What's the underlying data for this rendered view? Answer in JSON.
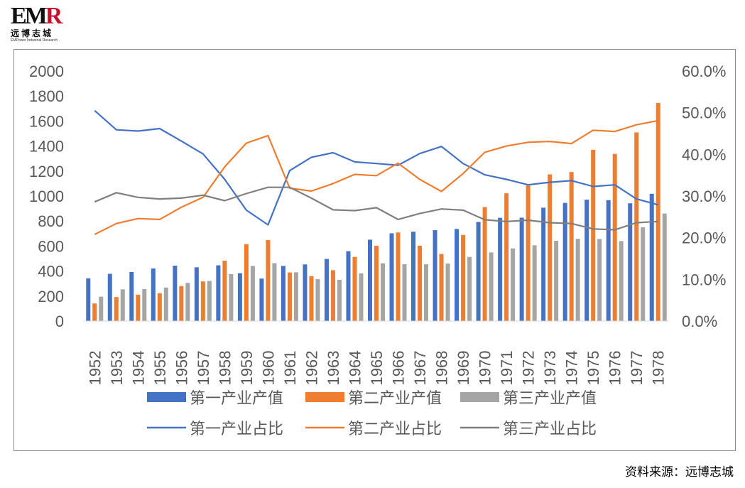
{
  "logo": {
    "mark_left": "EM",
    "mark_right": "R",
    "name_cn": "远博志城",
    "name_en": "EMPower Industrial Research"
  },
  "source": "资料来源：远博志城",
  "colors": {
    "primary": "#4472C4",
    "secondary": "#ED7D31",
    "tertiary": "#A5A5A5",
    "tertiary_line": "#7F7F7F"
  },
  "chart_data": {
    "type": "bar",
    "categories": [
      "1952",
      "1953",
      "1954",
      "1955",
      "1956",
      "1957",
      "1958",
      "1959",
      "1960",
      "1961",
      "1962",
      "1963",
      "1964",
      "1965",
      "1966",
      "1967",
      "1968",
      "1969",
      "1970",
      "1971",
      "1972",
      "1973",
      "1974",
      "1975",
      "1976",
      "1977",
      "1978"
    ],
    "y_left": {
      "ylim": [
        0,
        2000
      ],
      "ticks": [
        0,
        200,
        400,
        600,
        800,
        1000,
        1200,
        1400,
        1600,
        1800,
        2000
      ]
    },
    "y_right": {
      "ylim": [
        0,
        60
      ],
      "ticks": [
        "0.0%",
        "10.0%",
        "20.0%",
        "30.0%",
        "40.0%",
        "50.0%",
        "60.0%"
      ]
    },
    "grid": false,
    "legend_position": "bottom",
    "bar_series": [
      {
        "name": "第一产业产值",
        "color": "#4472C4",
        "values": [
          342,
          378,
          392,
          421,
          443,
          430,
          446,
          383,
          340,
          441,
          453,
          497,
          559,
          651,
          702,
          715,
          727,
          737,
          793,
          826,
          827,
          907,
          945,
          971,
          967,
          942,
          1018
        ]
      },
      {
        "name": "第二产业产值",
        "color": "#ED7D31",
        "values": [
          141,
          192,
          211,
          222,
          280,
          317,
          483,
          615,
          648,
          389,
          359,
          407,
          513,
          602,
          709,
          603,
          537,
          689,
          912,
          1022,
          1084,
          1173,
          1192,
          1370,
          1337,
          1509,
          1745
        ]
      },
      {
        "name": "第三产业产值",
        "color": "#A5A5A5",
        "values": [
          195,
          254,
          256,
          268,
          305,
          321,
          376,
          441,
          463,
          390,
          336,
          330,
          382,
          462,
          455,
          455,
          460,
          513,
          549,
          581,
          606,
          642,
          658,
          657,
          640,
          750,
          860
        ]
      }
    ],
    "line_series": [
      {
        "name": "第一产业占比",
        "color": "#4472C4",
        "values": [
          50.5,
          45.9,
          45.6,
          46.2,
          43.2,
          40.1,
          34.0,
          26.6,
          23.1,
          36.1,
          39.3,
          40.4,
          38.2,
          37.8,
          37.4,
          40.2,
          41.9,
          37.8,
          35.1,
          34.0,
          32.7,
          33.3,
          33.7,
          32.3,
          32.7,
          29.3,
          27.9
        ]
      },
      {
        "name": "第二产业占比",
        "color": "#ED7D31",
        "values": [
          20.8,
          23.4,
          24.6,
          24.4,
          27.3,
          29.7,
          37.0,
          42.7,
          44.5,
          31.9,
          31.2,
          33.0,
          35.2,
          34.9,
          37.9,
          34.0,
          31.1,
          35.4,
          40.5,
          42.0,
          42.9,
          43.1,
          42.6,
          45.8,
          45.5,
          47.1,
          48.1
        ]
      },
      {
        "name": "第三产业占比",
        "color": "#7F7F7F",
        "values": [
          28.6,
          30.8,
          29.7,
          29.3,
          29.5,
          30.2,
          28.9,
          30.6,
          32.1,
          32.1,
          29.5,
          26.7,
          26.5,
          27.2,
          24.4,
          25.8,
          26.9,
          26.6,
          24.3,
          23.9,
          24.2,
          23.6,
          23.4,
          22.1,
          21.9,
          23.6,
          23.9
        ]
      }
    ]
  }
}
